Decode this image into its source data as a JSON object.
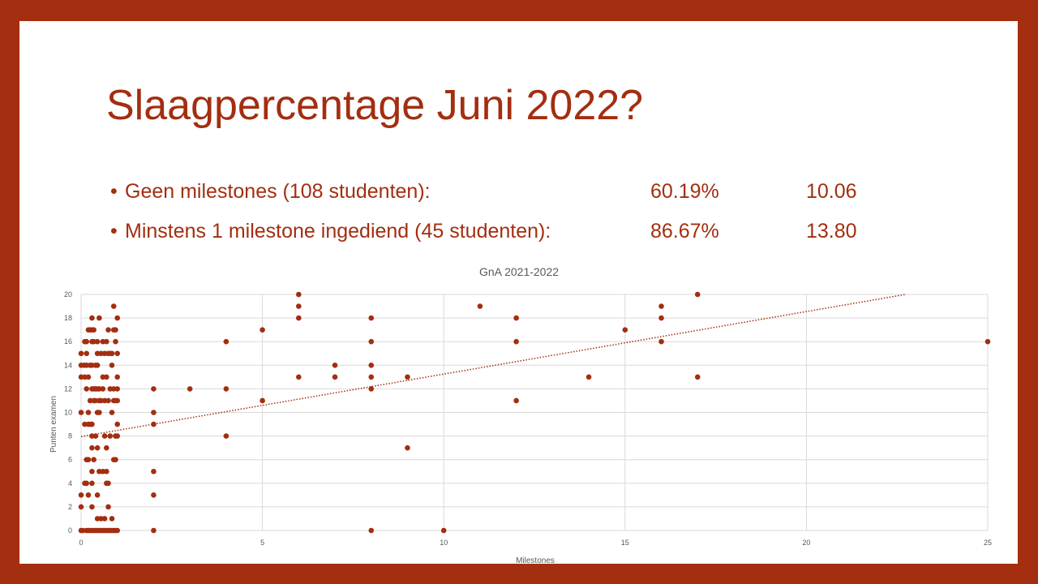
{
  "slide": {
    "title": "Slaagpercentage Juni 2022?",
    "bullets": [
      {
        "label": "Geen milestones (108 studenten):",
        "percentage": "60.19%",
        "average": "10.06"
      },
      {
        "label": "Minstens 1 milestone ingediend (45 studenten):",
        "percentage": "86.67%",
        "average": "13.80"
      }
    ],
    "bullet_char": "•",
    "accent_color": "#a32e10"
  },
  "chart_data": {
    "type": "scatter",
    "title": "GnA 2021-2022",
    "xlabel": "Milestones",
    "ylabel": "Punten examen",
    "xlim": [
      0,
      25
    ],
    "ylim": [
      0,
      20
    ],
    "xticks": [
      0,
      5,
      10,
      15,
      20,
      25
    ],
    "yticks": [
      0,
      2,
      4,
      6,
      8,
      10,
      12,
      14,
      16,
      18,
      20
    ],
    "grid": true,
    "trendline": {
      "type": "linear",
      "style": "dotted",
      "x0": 0,
      "y0": 7.95,
      "slope": 0.53
    },
    "marker_color": "#a32e10",
    "points": [
      [
        0,
        0
      ],
      [
        0,
        2
      ],
      [
        0,
        3
      ],
      [
        0,
        10
      ],
      [
        0,
        13
      ],
      [
        0,
        14
      ],
      [
        0,
        15
      ],
      [
        0.05,
        0
      ],
      [
        0.08,
        14
      ],
      [
        0.1,
        4
      ],
      [
        0.1,
        9
      ],
      [
        0.1,
        13
      ],
      [
        0.1,
        16
      ],
      [
        0.15,
        0
      ],
      [
        0.15,
        4
      ],
      [
        0.15,
        6
      ],
      [
        0.15,
        12
      ],
      [
        0.15,
        14
      ],
      [
        0.15,
        15
      ],
      [
        0.15,
        16
      ],
      [
        0.2,
        0
      ],
      [
        0.2,
        3
      ],
      [
        0.2,
        6
      ],
      [
        0.2,
        9
      ],
      [
        0.2,
        10
      ],
      [
        0.2,
        13
      ],
      [
        0.2,
        17
      ],
      [
        0.25,
        0
      ],
      [
        0.25,
        9
      ],
      [
        0.25,
        11
      ],
      [
        0.25,
        14
      ],
      [
        0.25,
        17
      ],
      [
        0.3,
        0
      ],
      [
        0.3,
        2
      ],
      [
        0.3,
        4
      ],
      [
        0.3,
        5
      ],
      [
        0.3,
        7
      ],
      [
        0.3,
        8
      ],
      [
        0.3,
        9
      ],
      [
        0.3,
        12
      ],
      [
        0.3,
        14
      ],
      [
        0.3,
        16
      ],
      [
        0.3,
        17
      ],
      [
        0.3,
        18
      ],
      [
        0.35,
        0
      ],
      [
        0.35,
        6
      ],
      [
        0.35,
        11
      ],
      [
        0.35,
        12
      ],
      [
        0.35,
        16
      ],
      [
        0.35,
        17
      ],
      [
        0.4,
        0
      ],
      [
        0.4,
        8
      ],
      [
        0.4,
        11
      ],
      [
        0.4,
        12
      ],
      [
        0.4,
        14
      ],
      [
        0.45,
        0
      ],
      [
        0.45,
        1
      ],
      [
        0.45,
        3
      ],
      [
        0.45,
        7
      ],
      [
        0.45,
        10
      ],
      [
        0.45,
        12
      ],
      [
        0.45,
        14
      ],
      [
        0.45,
        15
      ],
      [
        0.45,
        16
      ],
      [
        0.5,
        0
      ],
      [
        0.5,
        5
      ],
      [
        0.5,
        10
      ],
      [
        0.5,
        11
      ],
      [
        0.5,
        12
      ],
      [
        0.5,
        18
      ],
      [
        0.55,
        0
      ],
      [
        0.55,
        1
      ],
      [
        0.55,
        11
      ],
      [
        0.55,
        15
      ],
      [
        0.6,
        0
      ],
      [
        0.6,
        5
      ],
      [
        0.6,
        12
      ],
      [
        0.6,
        13
      ],
      [
        0.6,
        16
      ],
      [
        0.65,
        0
      ],
      [
        0.65,
        1
      ],
      [
        0.65,
        8
      ],
      [
        0.65,
        11
      ],
      [
        0.65,
        15
      ],
      [
        0.7,
        0
      ],
      [
        0.7,
        4
      ],
      [
        0.7,
        5
      ],
      [
        0.7,
        7
      ],
      [
        0.7,
        13
      ],
      [
        0.7,
        16
      ],
      [
        0.75,
        0
      ],
      [
        0.75,
        2
      ],
      [
        0.75,
        4
      ],
      [
        0.75,
        11
      ],
      [
        0.75,
        15
      ],
      [
        0.75,
        17
      ],
      [
        0.8,
        0
      ],
      [
        0.8,
        8
      ],
      [
        0.8,
        12
      ],
      [
        0.8,
        15
      ],
      [
        0.85,
        0
      ],
      [
        0.85,
        1
      ],
      [
        0.85,
        10
      ],
      [
        0.85,
        14
      ],
      [
        0.85,
        15
      ],
      [
        0.9,
        0
      ],
      [
        0.9,
        6
      ],
      [
        0.9,
        11
      ],
      [
        0.9,
        12
      ],
      [
        0.9,
        17
      ],
      [
        0.9,
        19
      ],
      [
        0.95,
        0
      ],
      [
        0.95,
        6
      ],
      [
        0.95,
        8
      ],
      [
        0.95,
        11
      ],
      [
        0.95,
        16
      ],
      [
        0.95,
        17
      ],
      [
        1,
        0
      ],
      [
        1,
        8
      ],
      [
        1,
        9
      ],
      [
        1,
        11
      ],
      [
        1,
        12
      ],
      [
        1,
        13
      ],
      [
        1,
        15
      ],
      [
        1,
        18
      ],
      [
        2,
        0
      ],
      [
        2,
        3
      ],
      [
        2,
        5
      ],
      [
        2,
        9
      ],
      [
        2,
        10
      ],
      [
        2,
        12
      ],
      [
        3,
        12
      ],
      [
        4,
        8
      ],
      [
        4,
        12
      ],
      [
        4,
        16
      ],
      [
        5,
        11
      ],
      [
        5,
        17
      ],
      [
        6,
        13
      ],
      [
        6,
        18
      ],
      [
        6,
        19
      ],
      [
        6,
        20
      ],
      [
        7,
        13
      ],
      [
        7,
        14
      ],
      [
        8,
        0
      ],
      [
        8,
        12
      ],
      [
        8,
        13
      ],
      [
        8,
        14
      ],
      [
        8,
        16
      ],
      [
        8,
        18
      ],
      [
        9,
        7
      ],
      [
        9,
        13
      ],
      [
        10,
        0
      ],
      [
        11,
        19
      ],
      [
        12,
        11
      ],
      [
        12,
        16
      ],
      [
        12,
        18
      ],
      [
        14,
        13
      ],
      [
        15,
        17
      ],
      [
        16,
        16
      ],
      [
        16,
        18
      ],
      [
        16,
        19
      ],
      [
        17,
        13
      ],
      [
        17,
        20
      ],
      [
        25,
        16
      ]
    ]
  }
}
